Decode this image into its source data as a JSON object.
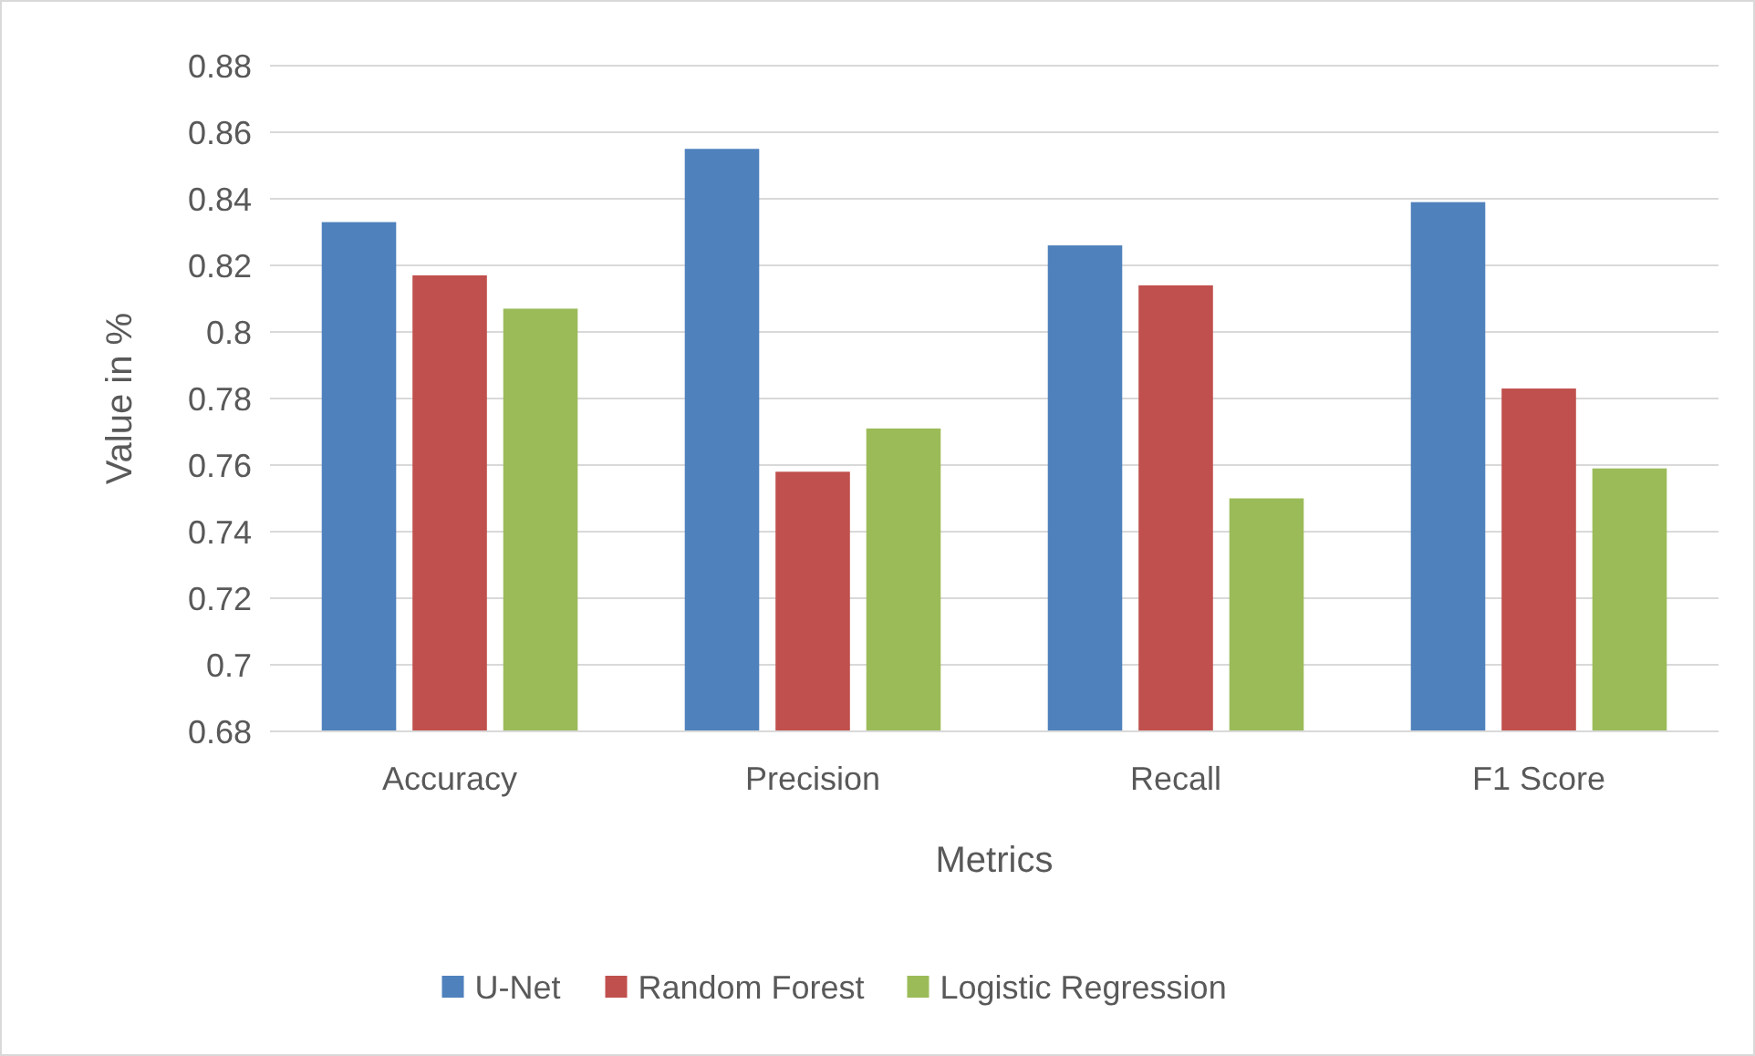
{
  "chart_data": {
    "type": "bar",
    "xlabel": "Metrics",
    "ylabel": "Value in %",
    "categories": [
      "Accuracy",
      "Precision",
      "Recall",
      "F1 Score"
    ],
    "series": [
      {
        "name": "U-Net",
        "color": "#4f81bd",
        "values": [
          0.833,
          0.855,
          0.826,
          0.839
        ]
      },
      {
        "name": "Random Forest",
        "color": "#c0504d",
        "values": [
          0.817,
          0.758,
          0.814,
          0.783
        ]
      },
      {
        "name": "Logistic Regression",
        "color": "#9bbb59",
        "values": [
          0.807,
          0.771,
          0.75,
          0.759
        ]
      }
    ],
    "ylim": [
      0.68,
      0.88
    ],
    "yticks": [
      0.68,
      0.7,
      0.72,
      0.74,
      0.76,
      0.78,
      0.8,
      0.82,
      0.84,
      0.86,
      0.88
    ],
    "grid": "y",
    "legend": "bottom"
  }
}
